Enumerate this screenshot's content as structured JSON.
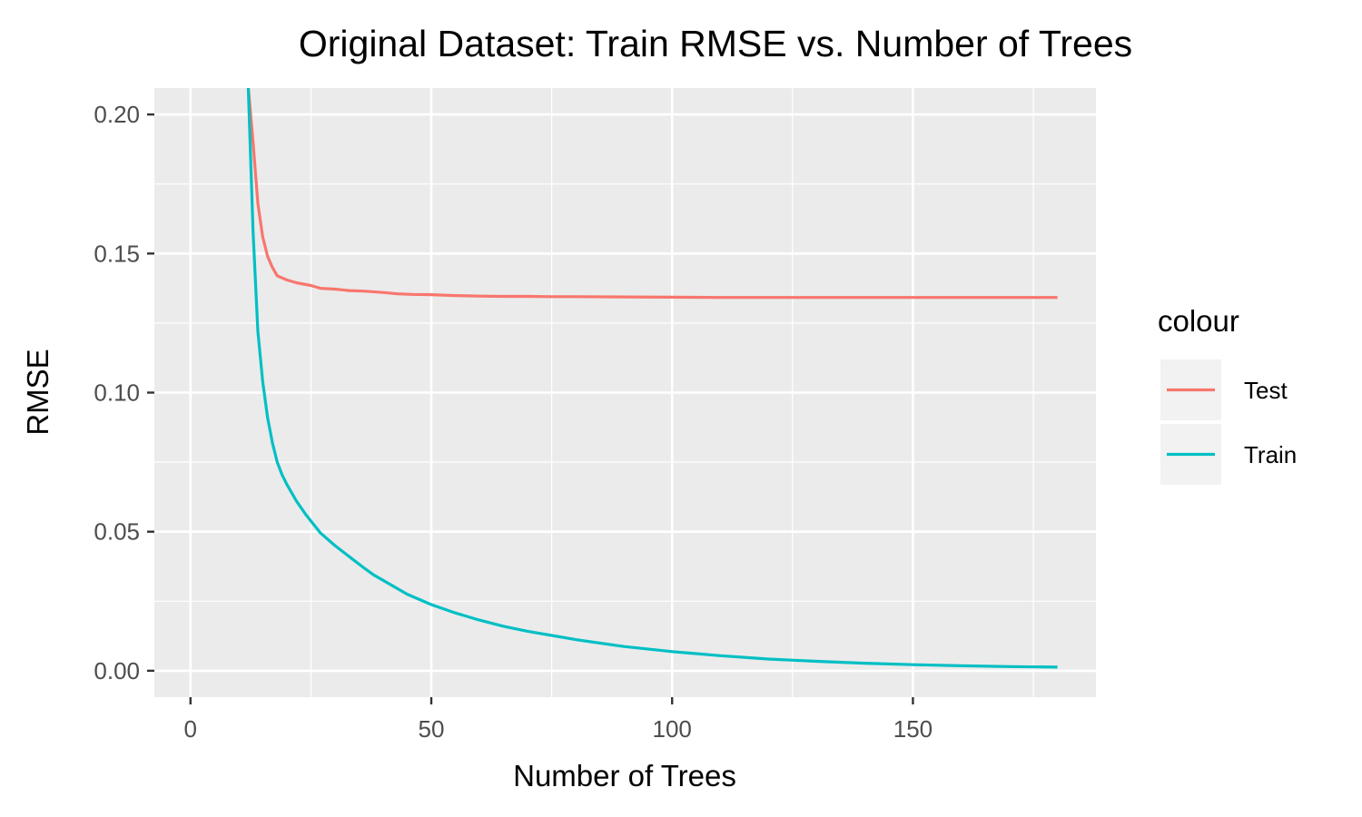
{
  "chart_data": {
    "type": "line",
    "title": "Original Dataset: Train RMSE vs. Number of Trees",
    "xlabel": "Number of Trees",
    "ylabel": "RMSE",
    "xlim": [
      -7.5,
      188
    ],
    "ylim": [
      -0.0095,
      0.2095
    ],
    "x_ticks": [
      0,
      50,
      100,
      150
    ],
    "x_tick_labels": [
      "0",
      "50",
      "100",
      "150"
    ],
    "y_ticks": [
      0,
      0.05,
      0.1,
      0.15,
      0.2
    ],
    "y_tick_labels": [
      "0.00",
      "0.05",
      "0.10",
      "0.15",
      "0.20"
    ],
    "grid": true,
    "legend": {
      "title": "colour",
      "position": "right"
    },
    "series": [
      {
        "name": "Test",
        "color": "#F8766D",
        "x": [
          12,
          13,
          14,
          15,
          16,
          17,
          18,
          20,
          22,
          25,
          27,
          30,
          33,
          36,
          40,
          43,
          46,
          50,
          55,
          60,
          65,
          70,
          75,
          80,
          90,
          100,
          110,
          120,
          130,
          140,
          150,
          160,
          170,
          180
        ],
        "y": [
          0.21,
          0.19,
          0.168,
          0.156,
          0.149,
          0.145,
          0.142,
          0.1405,
          0.1395,
          0.1385,
          0.1375,
          0.1372,
          0.1367,
          0.1365,
          0.136,
          0.1355,
          0.1353,
          0.1352,
          0.1349,
          0.1347,
          0.1346,
          0.1346,
          0.1345,
          0.1345,
          0.1344,
          0.1343,
          0.1342,
          0.1342,
          0.1342,
          0.1342,
          0.1342,
          0.1342,
          0.1342,
          0.1342
        ]
      },
      {
        "name": "Train",
        "color": "#00BFC4",
        "x": [
          12,
          13,
          14,
          15,
          16,
          17,
          18,
          19,
          20,
          22,
          24,
          27,
          30,
          33,
          36,
          38,
          40,
          45,
          50,
          55,
          60,
          65,
          70,
          75,
          80,
          90,
          100,
          110,
          120,
          130,
          140,
          150,
          160,
          170,
          180
        ],
        "y": [
          0.21,
          0.158,
          0.122,
          0.104,
          0.091,
          0.082,
          0.075,
          0.0705,
          0.067,
          0.061,
          0.056,
          0.0495,
          0.045,
          0.041,
          0.037,
          0.0345,
          0.0325,
          0.0275,
          0.0238,
          0.0208,
          0.0182,
          0.016,
          0.0142,
          0.0127,
          0.0112,
          0.0087,
          0.0069,
          0.0054,
          0.0042,
          0.0034,
          0.0027,
          0.0022,
          0.0018,
          0.0015,
          0.0013
        ]
      }
    ]
  }
}
